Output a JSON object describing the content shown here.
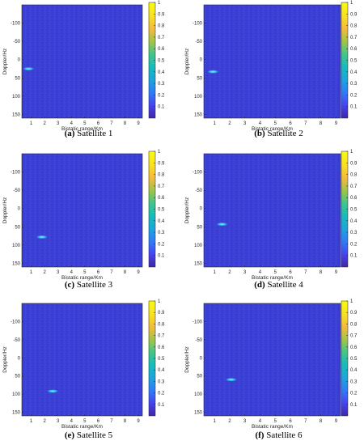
{
  "chart_data": [
    {
      "type": "heatmap",
      "caption_label": "(a)",
      "caption_text": "Satellite 1",
      "xlabel": "Bistatic range/Km",
      "ylabel": "Doppler/Hz",
      "xlim": [
        0.3,
        9.3
      ],
      "ylim": [
        -150,
        160
      ],
      "xticks": [
        "1",
        "2",
        "3",
        "4",
        "5",
        "6",
        "7",
        "8",
        "9"
      ],
      "yticks": [
        "-100",
        "-50",
        "0",
        "50",
        "100",
        "150"
      ],
      "colorbar_ticks": [
        "0.1",
        "0.2",
        "0.3",
        "0.4",
        "0.5",
        "0.6",
        "0.7",
        "0.8",
        "0.9",
        "1"
      ],
      "peak": {
        "x": 0.8,
        "y": 25,
        "value": 1
      }
    },
    {
      "type": "heatmap",
      "caption_label": "(b)",
      "caption_text": "Satellite 2",
      "xlabel": "Bistatic range/Km",
      "ylabel": "Doppler/Hz",
      "xlim": [
        0.3,
        9.3
      ],
      "ylim": [
        -150,
        160
      ],
      "xticks": [
        "1",
        "2",
        "3",
        "4",
        "5",
        "6",
        "7",
        "8",
        "9"
      ],
      "yticks": [
        "-100",
        "-50",
        "0",
        "50",
        "100",
        "150"
      ],
      "colorbar_ticks": [
        "0.1",
        "0.2",
        "0.3",
        "0.4",
        "0.5",
        "0.6",
        "0.7",
        "0.8",
        "0.9",
        "1"
      ],
      "peak": {
        "x": 0.9,
        "y": 33,
        "value": 1
      }
    },
    {
      "type": "heatmap",
      "caption_label": "(c)",
      "caption_text": "Satellite 3",
      "xlabel": "Bistatic range/Km",
      "ylabel": "Doppler/Hz",
      "xlim": [
        0.3,
        9.3
      ],
      "ylim": [
        -150,
        160
      ],
      "xticks": [
        "1",
        "2",
        "3",
        "4",
        "5",
        "6",
        "7",
        "8",
        "9"
      ],
      "yticks": [
        "-100",
        "-50",
        "0",
        "50",
        "100",
        "150"
      ],
      "colorbar_ticks": [
        "0.1",
        "0.2",
        "0.3",
        "0.4",
        "0.5",
        "0.6",
        "0.7",
        "0.8",
        "0.9",
        "1"
      ],
      "peak": {
        "x": 1.8,
        "y": 78,
        "value": 1
      }
    },
    {
      "type": "heatmap",
      "caption_label": "(d)",
      "caption_text": "Satellite 4",
      "xlabel": "Bistatic range/Km",
      "ylabel": "Doppler/Hz",
      "xlim": [
        0.3,
        9.3
      ],
      "ylim": [
        -150,
        160
      ],
      "xticks": [
        "1",
        "2",
        "3",
        "4",
        "5",
        "6",
        "7",
        "8",
        "9"
      ],
      "yticks": [
        "-100",
        "-50",
        "0",
        "50",
        "100",
        "150"
      ],
      "colorbar_ticks": [
        "0.1",
        "0.2",
        "0.3",
        "0.4",
        "0.5",
        "0.6",
        "0.7",
        "0.8",
        "0.9",
        "1"
      ],
      "peak": {
        "x": 1.5,
        "y": 43,
        "value": 1
      }
    },
    {
      "type": "heatmap",
      "caption_label": "(e)",
      "caption_text": "Satellite 5",
      "xlabel": "Bistatic range/Km",
      "ylabel": "Doppler/Hz",
      "xlim": [
        0.3,
        9.3
      ],
      "ylim": [
        -150,
        160
      ],
      "xticks": [
        "1",
        "2",
        "3",
        "4",
        "5",
        "6",
        "7",
        "8",
        "9"
      ],
      "yticks": [
        "-100",
        "-50",
        "0",
        "50",
        "100",
        "150"
      ],
      "colorbar_ticks": [
        "0.1",
        "0.2",
        "0.3",
        "0.4",
        "0.5",
        "0.6",
        "0.7",
        "0.8",
        "0.9",
        "1"
      ],
      "peak": {
        "x": 2.6,
        "y": 92,
        "value": 1
      }
    },
    {
      "type": "heatmap",
      "caption_label": "(f)",
      "caption_text": "Satellite 6",
      "xlabel": "Bistatic range/Km",
      "ylabel": "Doppler/Hz",
      "xlim": [
        0.3,
        9.3
      ],
      "ylim": [
        -150,
        160
      ],
      "xticks": [
        "1",
        "2",
        "3",
        "4",
        "5",
        "6",
        "7",
        "8",
        "9"
      ],
      "yticks": [
        "-100",
        "-50",
        "0",
        "50",
        "100",
        "150"
      ],
      "colorbar_ticks": [
        "0.1",
        "0.2",
        "0.3",
        "0.4",
        "0.5",
        "0.6",
        "0.7",
        "0.8",
        "0.9",
        "1"
      ],
      "peak": {
        "x": 2.1,
        "y": 60,
        "value": 1
      }
    }
  ],
  "colors": {
    "background_field": "#3b3fd6",
    "peak": "#35c8f0",
    "colormap": [
      "#3e26a8",
      "#4743f0",
      "#2f7bfb",
      "#1ba5e0",
      "#14bcbd",
      "#3ec68b",
      "#a0c547",
      "#f4ba3c",
      "#f8e021",
      "#f9fb0e"
    ]
  }
}
